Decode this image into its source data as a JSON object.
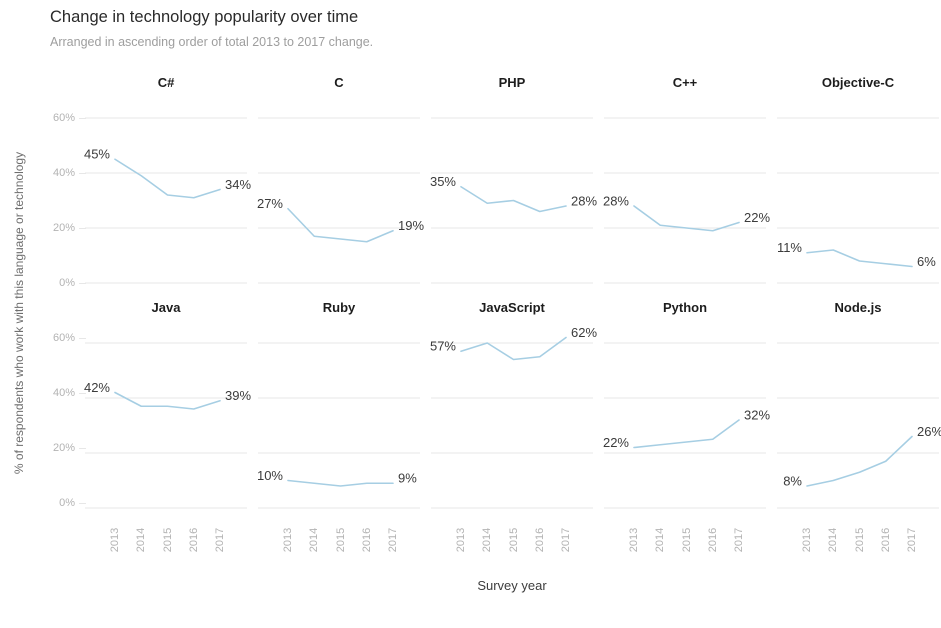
{
  "header": {
    "title": "Change in technology popularity over time",
    "subtitle": "Arranged in ascending order of total 2013 to 2017 change."
  },
  "axes": {
    "y_title": "% of respondents who work with this language or technology",
    "x_title": "Survey year",
    "y_ticks": [
      "60%",
      "40%",
      "20%",
      "0%"
    ],
    "x_ticks": [
      "2013",
      "2014",
      "2015",
      "2016",
      "2017"
    ]
  },
  "chart_data": {
    "type": "line",
    "layout": "small-multiples, 5 columns x 2 rows, shared axes",
    "x": [
      2013,
      2014,
      2015,
      2016,
      2017
    ],
    "ylim": [
      0,
      60
    ],
    "grid_values": [
      60,
      40,
      20,
      0
    ],
    "grid": "horizontal gridlines only",
    "line_color": "#a6cee3",
    "grid_color": "#e7e7e7",
    "tick_color": "#b3b3b3",
    "label_color": "#3b3b3b",
    "series": [
      {
        "name": "C#",
        "values": [
          45,
          39,
          32,
          31,
          34
        ],
        "first_label": "45%",
        "last_label": "34%"
      },
      {
        "name": "C",
        "values": [
          27,
          17,
          16,
          15,
          19
        ],
        "first_label": "27%",
        "last_label": "19%"
      },
      {
        "name": "PHP",
        "values": [
          35,
          29,
          30,
          26,
          28
        ],
        "first_label": "35%",
        "last_label": "28%"
      },
      {
        "name": "C++",
        "values": [
          28,
          21,
          20,
          19,
          22
        ],
        "first_label": "28%",
        "last_label": "22%"
      },
      {
        "name": "Objective-C",
        "values": [
          11,
          12,
          8,
          7,
          6
        ],
        "first_label": "11%",
        "last_label": "6%"
      },
      {
        "name": "Java",
        "values": [
          42,
          37,
          37,
          36,
          39
        ],
        "first_label": "42%",
        "last_label": "39%"
      },
      {
        "name": "Ruby",
        "values": [
          10,
          9,
          8,
          9,
          9
        ],
        "first_label": "10%",
        "last_label": "9%"
      },
      {
        "name": "JavaScript",
        "values": [
          57,
          60,
          54,
          55,
          62
        ],
        "first_label": "57%",
        "last_label": "62%"
      },
      {
        "name": "Python",
        "values": [
          22,
          23,
          24,
          25,
          32
        ],
        "first_label": "22%",
        "last_label": "32%"
      },
      {
        "name": "Node.js",
        "values": [
          8,
          10,
          13,
          17,
          26
        ],
        "first_label": "8%",
        "last_label": "26%"
      }
    ]
  }
}
